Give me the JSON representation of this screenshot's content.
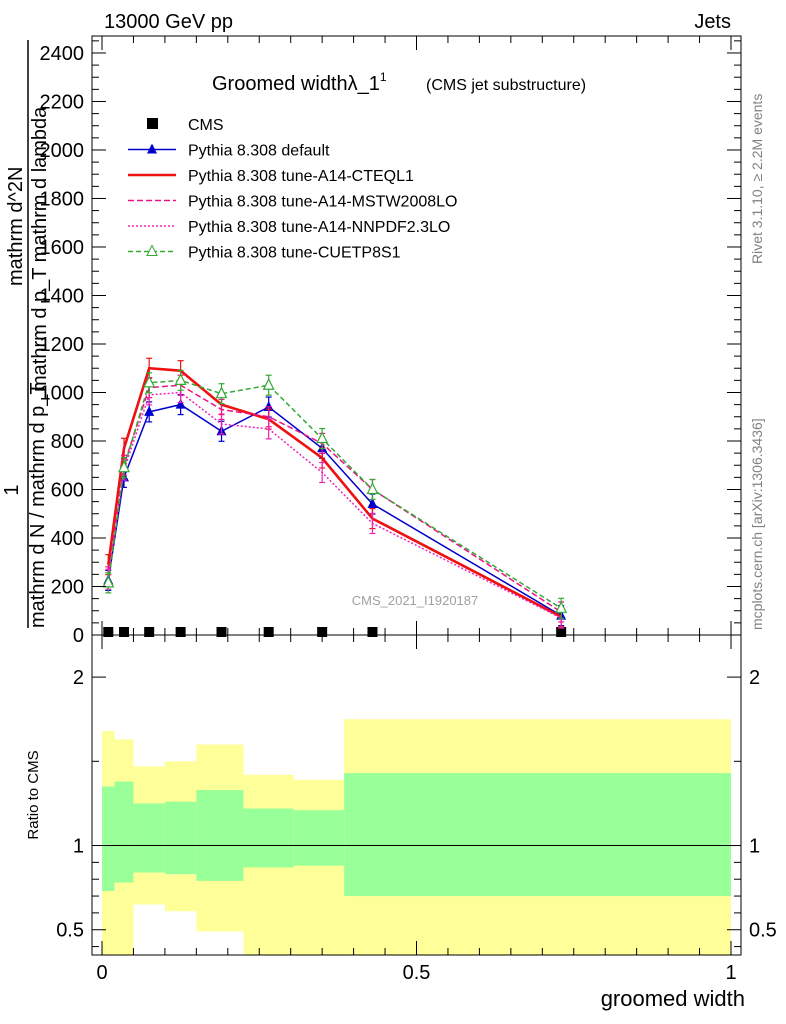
{
  "header": {
    "left": "13000 GeV pp",
    "right": "Jets"
  },
  "side": {
    "rivet": "Rivet 3.1.10, ≥ 2.2M events",
    "mcplots": "mcplots.cern.ch [arXiv:1306.3436]"
  },
  "chart_data": [
    {
      "type": "line",
      "title": "Groomed widthλ_1",
      "title_sup": "1",
      "subtitle": "(CMS jet substructure)",
      "watermark": "CMS_2021_I1920187",
      "ylabel_numerator": "1",
      "ylabel_denominator": "mathrm d N / mathrm d p_T",
      "ylabel_right_num": "mathrm d^2N",
      "ylabel_right_den": "mathrm d p_T mathrm d lambda",
      "xlim": [
        0,
        1
      ],
      "ylim": [
        0,
        2470
      ],
      "yticks": [
        0,
        200,
        400,
        600,
        800,
        1000,
        1200,
        1400,
        1600,
        1800,
        2000,
        2200,
        2400
      ],
      "x": [
        0.01,
        0.035,
        0.075,
        0.125,
        0.19,
        0.265,
        0.35,
        0.43,
        0.73
      ],
      "legend_position": "top-left",
      "series": [
        {
          "name": "CMS",
          "style": "cms",
          "color": "#000000",
          "values": [
            0,
            0,
            0,
            0,
            0,
            0,
            0,
            0,
            0
          ]
        },
        {
          "name": "Pythia 8.308 default",
          "style": "solid-triangle",
          "color": "#0000cc",
          "values": [
            225,
            650,
            920,
            950,
            840,
            940,
            770,
            540,
            80
          ]
        },
        {
          "name": "Pythia 8.308 tune-A14-CTEQL1",
          "style": "solid-thick",
          "color": "#ee1111",
          "values": [
            290,
            770,
            1100,
            1090,
            950,
            890,
            730,
            480,
            75
          ]
        },
        {
          "name": "Pythia 8.308 tune-A14-MSTW2008LO",
          "style": "dashed",
          "color": "#ee1188",
          "values": [
            240,
            700,
            1020,
            1030,
            930,
            900,
            790,
            600,
            95
          ]
        },
        {
          "name": "Pythia 8.308 tune-A14-NNPDF2.3LO",
          "style": "dotted",
          "color": "#ee22bb",
          "values": [
            230,
            680,
            990,
            1000,
            870,
            850,
            670,
            460,
            70
          ]
        },
        {
          "name": "Pythia 8.308 tune-CUETP8S1",
          "style": "dashed-open-triangle",
          "color": "#33aa33",
          "values": [
            215,
            690,
            1040,
            1050,
            995,
            1030,
            810,
            600,
            110
          ]
        }
      ]
    },
    {
      "type": "area",
      "ylabel": "Ratio to CMS",
      "xlabel": "groomed width",
      "xlim": [
        0,
        1
      ],
      "ylim": [
        0.35,
        2.25
      ],
      "yticks": [
        0.5,
        1,
        2
      ],
      "ytick_labels": [
        "0.5",
        "1",
        "2"
      ],
      "xticks": [
        0,
        0.5,
        1
      ],
      "xtick_labels": [
        "0",
        "0.5",
        "1"
      ],
      "bins": [
        {
          "x0": 0.0,
          "x1": 0.02,
          "green": [
            0.73,
            1.35
          ],
          "yellow": [
            0.35,
            1.68
          ]
        },
        {
          "x0": 0.02,
          "x1": 0.05,
          "green": [
            0.78,
            1.38
          ],
          "yellow": [
            0.35,
            1.63
          ]
        },
        {
          "x0": 0.05,
          "x1": 0.1,
          "green": [
            0.84,
            1.25
          ],
          "yellow": [
            0.65,
            1.47
          ]
        },
        {
          "x0": 0.1,
          "x1": 0.15,
          "green": [
            0.83,
            1.26
          ],
          "yellow": [
            0.61,
            1.5
          ]
        },
        {
          "x0": 0.15,
          "x1": 0.225,
          "green": [
            0.79,
            1.33
          ],
          "yellow": [
            0.49,
            1.6
          ]
        },
        {
          "x0": 0.225,
          "x1": 0.305,
          "green": [
            0.87,
            1.22
          ],
          "yellow": [
            0.35,
            1.42
          ]
        },
        {
          "x0": 0.305,
          "x1": 0.385,
          "green": [
            0.88,
            1.21
          ],
          "yellow": [
            0.35,
            1.39
          ]
        },
        {
          "x0": 0.385,
          "x1": 1.0,
          "green": [
            0.7,
            1.43
          ],
          "yellow": [
            0.35,
            1.75
          ]
        }
      ],
      "reference_line": 1
    }
  ]
}
